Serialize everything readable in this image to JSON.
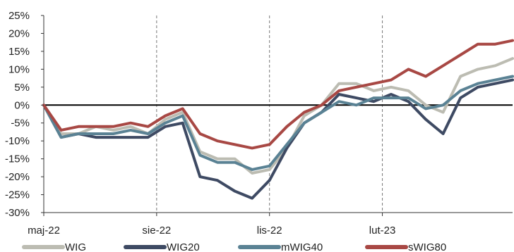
{
  "chart_data": {
    "type": "line",
    "xlabel": "",
    "ylabel": "",
    "x_tick_labels": [
      "maj-22",
      "sie-22",
      "lis-22",
      "lut-23"
    ],
    "y_tick_labels": [
      "25%",
      "20%",
      "15%",
      "10%",
      "5%",
      "0%",
      "-5%",
      "-10%",
      "-15%",
      "-20%",
      "-25%",
      "-30%"
    ],
    "ylim": [
      -30,
      25
    ],
    "x_unit": "trading week (from start of May 2022)",
    "grid": "dashed vertical lines at x ticks",
    "zero_line": true,
    "legend_position": "bottom",
    "series": [
      {
        "name": "WIG",
        "color": "#bcbcb2",
        "x": [
          0,
          2,
          4,
          6,
          8,
          10,
          12,
          14,
          16,
          18,
          20,
          22,
          24,
          26,
          28,
          30,
          32,
          34,
          36,
          38,
          40,
          42,
          44,
          46,
          48,
          50,
          52,
          54
        ],
        "values": [
          0,
          -8,
          -8,
          -6,
          -7,
          -6,
          -8,
          -4,
          -2,
          -13,
          -15,
          -15,
          -19,
          -18,
          -12,
          -3,
          0,
          6,
          6,
          4,
          5,
          4,
          0,
          -2,
          8,
          10,
          11,
          13
        ]
      },
      {
        "name": "WIG20",
        "color": "#3e4a63",
        "x": [
          0,
          2,
          4,
          6,
          8,
          10,
          12,
          14,
          16,
          18,
          20,
          22,
          24,
          26,
          28,
          30,
          32,
          34,
          36,
          38,
          40,
          42,
          44,
          46,
          48,
          50,
          52,
          54
        ],
        "values": [
          0,
          -9,
          -8,
          -9,
          -9,
          -9,
          -9,
          -6,
          -5,
          -20,
          -21,
          -24,
          -26,
          -21,
          -12,
          -5,
          -2,
          3,
          2,
          1,
          3,
          1,
          -4,
          -8,
          2,
          5,
          6,
          7
        ]
      },
      {
        "name": "mWIG40",
        "color": "#5a8294",
        "x": [
          0,
          2,
          4,
          6,
          8,
          10,
          12,
          14,
          16,
          18,
          20,
          22,
          24,
          26,
          28,
          30,
          32,
          34,
          36,
          38,
          40,
          42,
          44,
          46,
          48,
          50,
          52,
          54
        ],
        "values": [
          0,
          -9,
          -8,
          -8,
          -8,
          -7,
          -8,
          -5,
          -3,
          -14,
          -16,
          -16,
          -18,
          -17,
          -11,
          -5,
          -2,
          1,
          0,
          2,
          2,
          2,
          -1,
          0,
          4,
          6,
          7,
          8
        ]
      },
      {
        "name": "sWIG80",
        "color": "#a84844",
        "x": [
          0,
          2,
          4,
          6,
          8,
          10,
          12,
          14,
          16,
          18,
          20,
          22,
          24,
          26,
          28,
          30,
          32,
          34,
          36,
          38,
          40,
          42,
          44,
          46,
          48,
          50,
          52,
          54
        ],
        "values": [
          0,
          -7,
          -6,
          -6,
          -6,
          -5,
          -6,
          -3,
          -1,
          -8,
          -10,
          -11,
          -12,
          -11,
          -6,
          -2,
          0,
          4,
          5,
          6,
          7,
          10,
          8,
          11,
          14,
          17,
          17,
          18
        ]
      }
    ]
  }
}
